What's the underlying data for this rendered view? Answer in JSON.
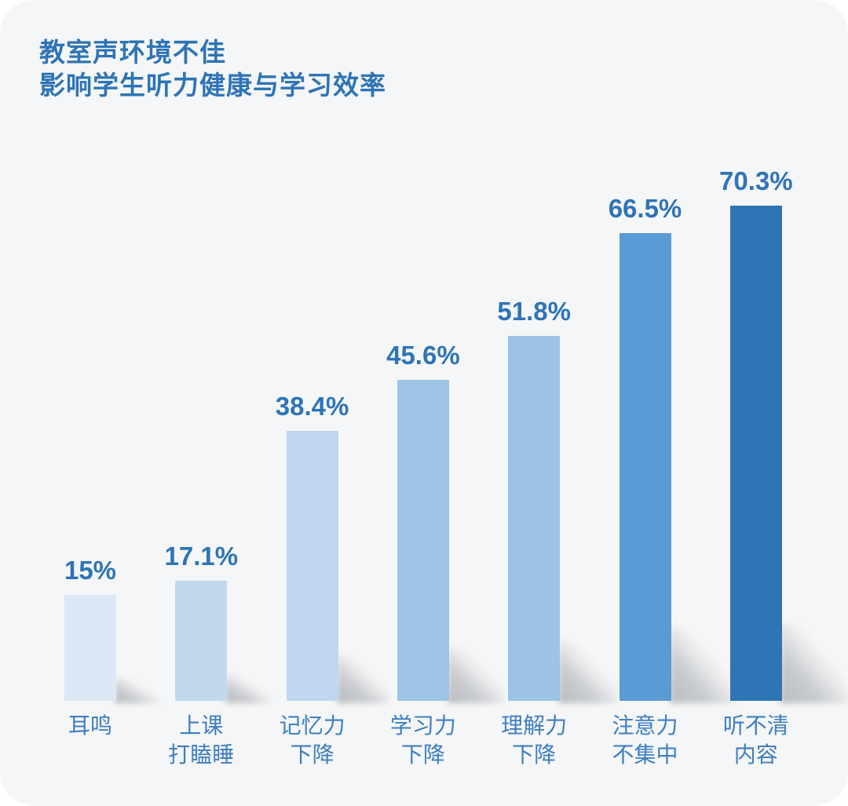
{
  "page": {
    "background_color": "#ffffff",
    "card_color": "#f5f6f7"
  },
  "title": {
    "line1": "教室声环境不佳",
    "line2": "影响学生听力健康与学习效率",
    "color": "#2e74b5"
  },
  "chart_data": {
    "type": "bar",
    "title": "教室声环境不佳 影响学生听力健康与学习效率",
    "categories": [
      "耳鸣",
      "上课打瞌睡",
      "记忆力下降",
      "学习力下降",
      "理解力下降",
      "注意力不集中",
      "听不清内容"
    ],
    "category_lines": [
      [
        "耳鸣"
      ],
      [
        "上课",
        "打瞌睡"
      ],
      [
        "记忆力",
        "下降"
      ],
      [
        "学习力",
        "下降"
      ],
      [
        "理解力",
        "下降"
      ],
      [
        "注意力",
        "不集中"
      ],
      [
        "听不清",
        "内容"
      ]
    ],
    "values": [
      15,
      17.1,
      38.4,
      45.6,
      51.8,
      66.5,
      70.3
    ],
    "value_labels": [
      "15%",
      "17.1%",
      "38.4%",
      "45.6%",
      "51.8%",
      "66.5%",
      "70.3%"
    ],
    "bar_colors": [
      "#dbe9f6",
      "#c0d9ef",
      "#bdd7ee",
      "#9dc3e6",
      "#9cc2e5",
      "#5b9bd5",
      "#2e75b6"
    ],
    "value_label_color": "#2e74b5",
    "category_label_color": "#3e7fc1",
    "xlabel": "",
    "ylabel": "",
    "ylim": [
      0,
      75
    ],
    "grid": false,
    "legend": "none",
    "axes_visible": false,
    "bar_shadows": true
  }
}
